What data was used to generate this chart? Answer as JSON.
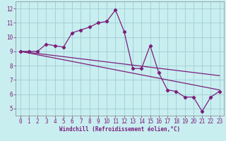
{
  "x": [
    0,
    1,
    2,
    3,
    4,
    5,
    6,
    7,
    8,
    9,
    10,
    11,
    12,
    13,
    14,
    15,
    16,
    17,
    18,
    19,
    20,
    21,
    22,
    23
  ],
  "y_main": [
    9.0,
    9.0,
    9.0,
    9.5,
    9.4,
    9.3,
    10.3,
    10.5,
    10.7,
    11.0,
    11.1,
    11.9,
    10.4,
    7.8,
    7.8,
    9.4,
    7.5,
    6.3,
    6.2,
    5.8,
    5.8,
    4.8,
    5.8,
    6.2
  ],
  "trend1_x": [
    0,
    23
  ],
  "trend1_y": [
    9.0,
    7.3
  ],
  "trend2_x": [
    0,
    23
  ],
  "trend2_y": [
    9.0,
    6.3
  ],
  "line_color": "#7b1f7b",
  "bg_color": "#c8eef0",
  "grid_color": "#a0cdd4",
  "xlabel": "Windchill (Refroidissement éolien,°C)",
  "ylim": [
    4.5,
    12.5
  ],
  "xlim": [
    -0.5,
    23.5
  ],
  "yticks": [
    5,
    6,
    7,
    8,
    9,
    10,
    11,
    12
  ],
  "xticks": [
    0,
    1,
    2,
    3,
    4,
    5,
    6,
    7,
    8,
    9,
    10,
    11,
    12,
    13,
    14,
    15,
    16,
    17,
    18,
    19,
    20,
    21,
    22,
    23
  ],
  "tick_fontsize": 5.5,
  "xlabel_fontsize": 5.5
}
